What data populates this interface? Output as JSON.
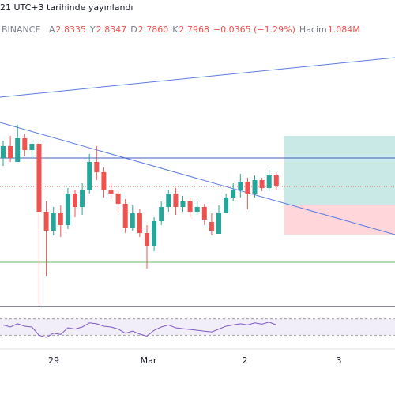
{
  "header": {
    "published": "21 UTC+3 tarihinde yayınlandı",
    "exchange": "BINANCE",
    "ohlc": [
      {
        "label": "A",
        "value": "2.8335"
      },
      {
        "label": "Y",
        "value": "2.8347"
      },
      {
        "label": "D",
        "value": "2.7860"
      },
      {
        "label": "K",
        "value": "2.7968"
      }
    ],
    "change": "−0.0365 (−1.29%)",
    "volume": {
      "label": "Hacim",
      "value": "1.084M"
    }
  },
  "chart_data": [
    {
      "type": "candlestick",
      "up_color": "#26a69a",
      "down_color": "#ef5350",
      "ylim": [
        2.42,
        3.39
      ],
      "open": [
        2.89,
        2.9275,
        2.8775,
        2.9525,
        2.915,
        2.935,
        2.72,
        2.66,
        2.715,
        2.6775,
        2.7775,
        2.735,
        2.79,
        2.8775,
        2.845,
        2.79,
        2.7775,
        2.745,
        2.67,
        2.715,
        2.6525,
        2.61,
        2.69,
        2.735,
        2.7775,
        2.735,
        2.7525,
        2.72,
        2.735,
        2.6875,
        2.65,
        2.7175,
        2.765,
        2.79,
        2.815,
        2.7775,
        2.82,
        2.795,
        2.835
      ],
      "high": [
        2.945,
        2.96,
        2.995,
        2.965,
        2.945,
        2.945,
        2.7525,
        2.735,
        2.74,
        2.795,
        2.79,
        2.81,
        2.9025,
        2.9275,
        2.86,
        2.81,
        2.79,
        2.76,
        2.74,
        2.7275,
        2.6775,
        2.7025,
        2.7525,
        2.79,
        2.795,
        2.77,
        2.765,
        2.7525,
        2.745,
        2.715,
        2.74,
        2.7775,
        2.81,
        2.84,
        2.8275,
        2.835,
        2.8275,
        2.8525,
        2.845
      ],
      "low": [
        2.865,
        2.8775,
        2.8775,
        2.895,
        2.89,
        2.4275,
        2.515,
        2.645,
        2.64,
        2.665,
        2.7025,
        2.71,
        2.7775,
        2.82,
        2.765,
        2.76,
        2.7175,
        2.6525,
        2.66,
        2.64,
        2.54,
        2.595,
        2.6775,
        2.72,
        2.71,
        2.72,
        2.7025,
        2.71,
        2.6775,
        2.645,
        2.65,
        2.7175,
        2.7525,
        2.765,
        2.7275,
        2.765,
        2.785,
        2.785,
        2.79
      ],
      "close": [
        2.9275,
        2.89,
        2.9525,
        2.915,
        2.935,
        2.72,
        2.66,
        2.715,
        2.6775,
        2.7775,
        2.735,
        2.79,
        2.8775,
        2.845,
        2.79,
        2.7775,
        2.745,
        2.67,
        2.715,
        2.6525,
        2.61,
        2.69,
        2.735,
        2.7775,
        2.735,
        2.7525,
        2.72,
        2.735,
        2.695,
        2.66,
        2.7175,
        2.765,
        2.79,
        2.815,
        2.7775,
        2.82,
        2.795,
        2.835,
        2.8025
      ]
    },
    {
      "type": "line",
      "name": "RSI",
      "color": "#7e57c2",
      "ylim": [
        0,
        100
      ],
      "band": [
        30,
        70
      ],
      "values": [
        55,
        50,
        58,
        52,
        50,
        30,
        25,
        35,
        32,
        48,
        45,
        50,
        60,
        58,
        52,
        50,
        45,
        35,
        40,
        33,
        28,
        42,
        50,
        55,
        48,
        46,
        44,
        42,
        40,
        38,
        45,
        52,
        55,
        58,
        55,
        60,
        57,
        62,
        55
      ]
    }
  ],
  "x_labels": [
    "29",
    "Mar",
    "2",
    "3"
  ]
}
